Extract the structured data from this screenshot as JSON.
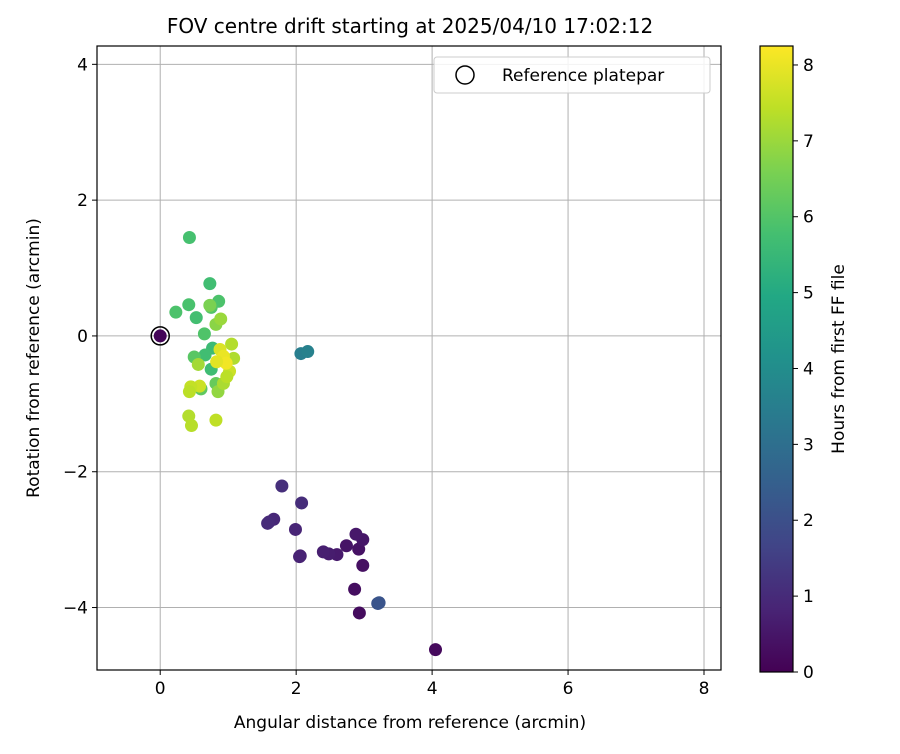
{
  "chart_data": {
    "type": "scatter",
    "title": "FOV centre drift starting at 2025/04/10 17:02:12",
    "xlabel": "Angular distance from reference (arcmin)",
    "ylabel": "Rotation from reference (arcmin)",
    "xlim": [
      -0.93,
      8.25
    ],
    "ylim": [
      -4.92,
      4.27
    ],
    "xticks": [
      0,
      2,
      4,
      6,
      8
    ],
    "xtick_labels": [
      "0",
      "2",
      "4",
      "6",
      "8"
    ],
    "yticks": [
      -4,
      -2,
      0,
      2,
      4
    ],
    "ytick_labels": [
      "−4",
      "−2",
      "0",
      "2",
      "4"
    ],
    "grid": true,
    "legend": {
      "placement": "top-right",
      "label": "Reference platepar"
    },
    "reference_point": {
      "x": 0,
      "y": 0
    },
    "colorbar": {
      "label": "Hours from first FF file",
      "colormap": "viridis",
      "range": [
        0,
        8.25
      ],
      "ticks": [
        0,
        1,
        2,
        3,
        4,
        5,
        6,
        7,
        8
      ],
      "tick_labels": [
        "0",
        "1",
        "2",
        "3",
        "4",
        "5",
        "6",
        "7",
        "8"
      ]
    },
    "points": [
      {
        "x": 0.0,
        "y": 0.0,
        "hours": 0.1
      },
      {
        "x": 4.05,
        "y": -4.62,
        "hours": 0.2
      },
      {
        "x": 2.93,
        "y": -4.08,
        "hours": 0.25
      },
      {
        "x": 2.86,
        "y": -3.73,
        "hours": 0.3
      },
      {
        "x": 2.98,
        "y": -3.38,
        "hours": 0.35
      },
      {
        "x": 2.92,
        "y": -3.14,
        "hours": 0.4
      },
      {
        "x": 2.74,
        "y": -3.09,
        "hours": 0.45
      },
      {
        "x": 2.98,
        "y": -3.0,
        "hours": 0.5
      },
      {
        "x": 2.88,
        "y": -2.92,
        "hours": 0.55
      },
      {
        "x": 2.6,
        "y": -3.22,
        "hours": 0.6
      },
      {
        "x": 2.48,
        "y": -3.21,
        "hours": 0.65
      },
      {
        "x": 2.4,
        "y": -3.18,
        "hours": 0.7
      },
      {
        "x": 2.06,
        "y": -3.24,
        "hours": 0.75
      },
      {
        "x": 2.05,
        "y": -3.25,
        "hours": 0.8
      },
      {
        "x": 1.99,
        "y": -2.85,
        "hours": 0.85
      },
      {
        "x": 1.67,
        "y": -2.7,
        "hours": 0.9
      },
      {
        "x": 1.6,
        "y": -2.74,
        "hours": 0.95
      },
      {
        "x": 1.58,
        "y": -2.76,
        "hours": 1.0
      },
      {
        "x": 2.08,
        "y": -2.46,
        "hours": 1.05
      },
      {
        "x": 1.79,
        "y": -2.21,
        "hours": 1.1
      },
      {
        "x": 3.2,
        "y": -3.94,
        "hours": 2.1
      },
      {
        "x": 3.22,
        "y": -3.93,
        "hours": 2.15
      },
      {
        "x": 2.07,
        "y": -0.26,
        "hours": 3.5
      },
      {
        "x": 2.17,
        "y": -0.23,
        "hours": 3.6
      },
      {
        "x": 0.43,
        "y": 1.45,
        "hours": 5.8
      },
      {
        "x": 0.73,
        "y": 0.77,
        "hours": 5.7
      },
      {
        "x": 0.86,
        "y": 0.51,
        "hours": 5.9
      },
      {
        "x": 0.42,
        "y": 0.46,
        "hours": 5.85
      },
      {
        "x": 0.23,
        "y": 0.35,
        "hours": 5.9
      },
      {
        "x": 0.53,
        "y": 0.27,
        "hours": 5.75
      },
      {
        "x": 0.75,
        "y": 0.42,
        "hours": 6.0
      },
      {
        "x": 0.65,
        "y": 0.03,
        "hours": 5.95
      },
      {
        "x": 0.77,
        "y": -0.18,
        "hours": 5.6
      },
      {
        "x": 0.66,
        "y": -0.28,
        "hours": 5.7
      },
      {
        "x": 0.75,
        "y": -0.49,
        "hours": 5.65
      },
      {
        "x": 0.5,
        "y": -0.31,
        "hours": 6.1
      },
      {
        "x": 0.6,
        "y": -0.78,
        "hours": 6.2
      },
      {
        "x": 0.82,
        "y": -0.7,
        "hours": 6.3
      },
      {
        "x": 0.73,
        "y": 0.45,
        "hours": 6.6
      },
      {
        "x": 0.82,
        "y": 0.17,
        "hours": 6.8
      },
      {
        "x": 0.89,
        "y": 0.25,
        "hours": 7.0
      },
      {
        "x": 0.56,
        "y": -0.42,
        "hours": 7.1
      },
      {
        "x": 0.85,
        "y": -0.82,
        "hours": 6.9
      },
      {
        "x": 0.93,
        "y": -0.7,
        "hours": 7.2
      },
      {
        "x": 1.05,
        "y": -0.12,
        "hours": 7.3
      },
      {
        "x": 1.08,
        "y": -0.33,
        "hours": 7.25
      },
      {
        "x": 1.02,
        "y": -0.52,
        "hours": 7.6
      },
      {
        "x": 0.98,
        "y": -0.6,
        "hours": 7.4
      },
      {
        "x": 0.88,
        "y": -0.2,
        "hours": 7.8
      },
      {
        "x": 0.93,
        "y": -0.3,
        "hours": 8.0
      },
      {
        "x": 0.97,
        "y": -0.4,
        "hours": 8.1
      },
      {
        "x": 0.83,
        "y": -0.38,
        "hours": 7.9
      },
      {
        "x": 0.58,
        "y": -0.74,
        "hours": 7.6
      },
      {
        "x": 0.45,
        "y": -0.75,
        "hours": 7.5
      },
      {
        "x": 0.43,
        "y": -0.82,
        "hours": 7.4
      },
      {
        "x": 0.42,
        "y": -1.18,
        "hours": 7.3
      },
      {
        "x": 0.46,
        "y": -1.32,
        "hours": 7.35
      },
      {
        "x": 0.82,
        "y": -1.24,
        "hours": 7.45
      }
    ]
  }
}
